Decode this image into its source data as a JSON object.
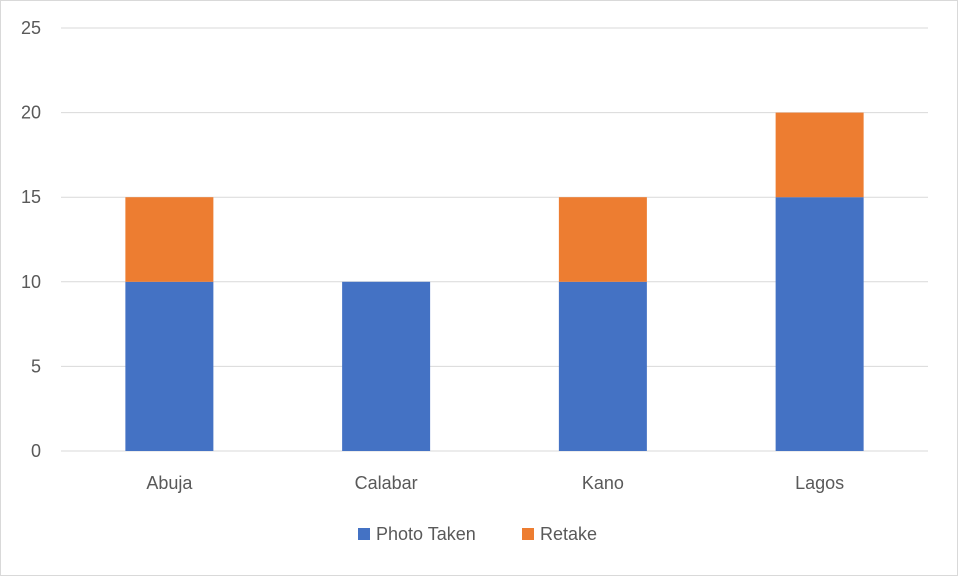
{
  "chart_data": {
    "type": "bar",
    "stacked": true,
    "title": "",
    "xlabel": "",
    "ylabel": "",
    "categories": [
      "Abuja",
      "Calabar",
      "Kano",
      "Lagos"
    ],
    "series": [
      {
        "name": "Photo Taken",
        "values": [
          10,
          10,
          10,
          15
        ],
        "color": "#4472c4"
      },
      {
        "name": "Retake",
        "values": [
          5,
          0,
          5,
          5
        ],
        "color": "#ed7d31"
      }
    ],
    "ylim": [
      0,
      25
    ],
    "yticks": [
      0,
      5,
      10,
      15,
      20,
      25
    ],
    "grid": true,
    "legend": "bottom"
  }
}
